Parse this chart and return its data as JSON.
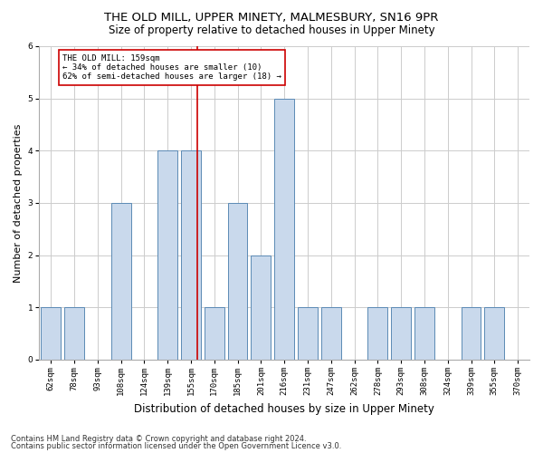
{
  "title": "THE OLD MILL, UPPER MINETY, MALMESBURY, SN16 9PR",
  "subtitle": "Size of property relative to detached houses in Upper Minety",
  "xlabel": "Distribution of detached houses by size in Upper Minety",
  "ylabel": "Number of detached properties",
  "footnote1": "Contains HM Land Registry data © Crown copyright and database right 2024.",
  "footnote2": "Contains public sector information licensed under the Open Government Licence v3.0.",
  "categories": [
    "62sqm",
    "78sqm",
    "93sqm",
    "108sqm",
    "124sqm",
    "139sqm",
    "155sqm",
    "170sqm",
    "185sqm",
    "201sqm",
    "216sqm",
    "231sqm",
    "247sqm",
    "262sqm",
    "278sqm",
    "293sqm",
    "308sqm",
    "324sqm",
    "339sqm",
    "355sqm",
    "370sqm"
  ],
  "bar_heights": [
    1,
    1,
    0,
    3,
    0,
    4,
    4,
    1,
    3,
    2,
    5,
    1,
    1,
    0,
    1,
    1,
    1,
    0,
    1,
    1,
    0
  ],
  "bar_color": "#c9d9ec",
  "bar_edge_color": "#5b8ab5",
  "grid_color": "#cccccc",
  "background_color": "#ffffff",
  "property_line_color": "#cc0000",
  "annotation_text": "THE OLD MILL: 159sqm\n← 34% of detached houses are smaller (10)\n62% of semi-detached houses are larger (18) →",
  "annotation_box_color": "#ffffff",
  "annotation_box_edge": "#cc0000",
  "ylim": [
    0,
    6
  ],
  "yticks": [
    0,
    1,
    2,
    3,
    4,
    5,
    6
  ],
  "title_fontsize": 9.5,
  "subtitle_fontsize": 8.5,
  "ylabel_fontsize": 8,
  "xlabel_fontsize": 8.5,
  "tick_fontsize": 6.5,
  "annot_fontsize": 6.5,
  "footnote_fontsize": 6
}
